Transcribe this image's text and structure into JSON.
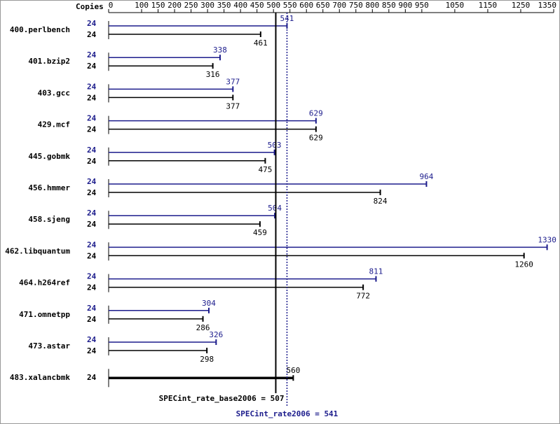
{
  "chart_data": {
    "type": "bar",
    "orientation": "horizontal",
    "axis_label": "Copies",
    "categories": [
      "400.perlbench",
      "401.bzip2",
      "403.gcc",
      "429.mcf",
      "445.gobmk",
      "456.hmmer",
      "458.sjeng",
      "462.libquantum",
      "464.h264ref",
      "471.omnetpp",
      "473.astar",
      "483.xalancbmk"
    ],
    "series": [
      {
        "color": "#1c1c8c",
        "copies": [
          24,
          24,
          24,
          24,
          24,
          24,
          24,
          24,
          24,
          24,
          24,
          null
        ],
        "values": [
          541,
          338,
          377,
          629,
          503,
          964,
          504,
          1330,
          811,
          304,
          326,
          null
        ]
      },
      {
        "color": "#000000",
        "copies": [
          24,
          24,
          24,
          24,
          24,
          24,
          24,
          24,
          24,
          24,
          24,
          24
        ],
        "values": [
          461,
          316,
          377,
          629,
          475,
          824,
          459,
          1260,
          772,
          286,
          298,
          560
        ]
      }
    ],
    "xlim": [
      0,
      1350
    ],
    "xticks": [
      0,
      100,
      150,
      200,
      250,
      300,
      350,
      400,
      450,
      500,
      550,
      600,
      650,
      700,
      750,
      800,
      850,
      900,
      950,
      1050,
      1150,
      1250,
      1350
    ],
    "reference_lines": [
      {
        "value": 507,
        "label": "SPECint_rate_base2006 = 507",
        "color": "#000000",
        "style": "solid"
      },
      {
        "value": 541,
        "label": "SPECint_rate2006 = 541",
        "color": "#1c1c8c",
        "style": "dotted"
      }
    ]
  }
}
